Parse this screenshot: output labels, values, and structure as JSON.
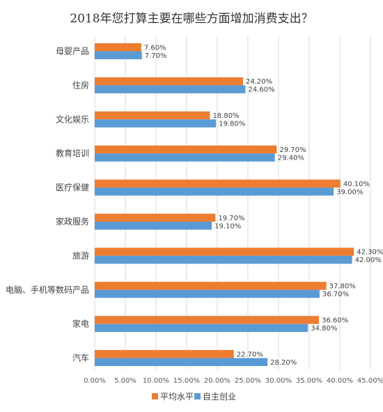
{
  "chart_data": {
    "type": "bar",
    "orientation": "horizontal",
    "title": "2018年您打算主要在哪些方面增加消费支出？",
    "categories": [
      "母婴产品",
      "住房",
      "文化娱乐",
      "教育培训",
      "医疗保健",
      "家政服务",
      "旅游",
      "电脑、手机等数码产品",
      "家电",
      "汽车"
    ],
    "series": [
      {
        "name": "平均水平",
        "color": "#ed7d31",
        "values": [
          7.6,
          24.2,
          18.8,
          29.7,
          40.1,
          19.7,
          42.3,
          37.8,
          36.6,
          22.7
        ],
        "labels": [
          "7.60%",
          "24.20%",
          "18.80%",
          "29.70%",
          "40.10%",
          "19.70%",
          "42.30%",
          "37.80%",
          "36.60%",
          "22.70%"
        ]
      },
      {
        "name": "自主创业",
        "color": "#5b9bd5",
        "values": [
          7.7,
          24.6,
          19.8,
          29.4,
          39.0,
          19.1,
          42.0,
          36.7,
          34.8,
          28.2
        ],
        "labels": [
          "7.70%",
          "24.60%",
          "19.80%",
          "29.40%",
          "39.00%",
          "19.10%",
          "42.00%",
          "36.70%",
          "34.80%",
          "28.20%"
        ]
      }
    ],
    "xlim": [
      0,
      45
    ],
    "x_ticks": [
      "0.00%",
      "5.00%",
      "10.00%",
      "15.00%",
      "20.00%",
      "25.00%",
      "30.00%",
      "35.00%",
      "40.00%",
      "45.00%"
    ],
    "grid": true,
    "legend_position": "bottom"
  }
}
